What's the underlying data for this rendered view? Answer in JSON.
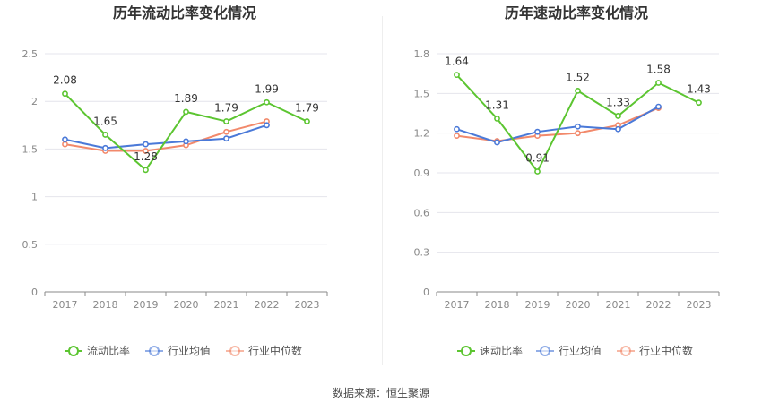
{
  "source_text": "数据来源：恒生聚源",
  "colors": {
    "main": "#5cc531",
    "avg": "#4a79d8",
    "median": "#f2896b",
    "grid": "#e4e4ec",
    "axis": "#8a8a8a",
    "tick_text": "#888888",
    "label_text": "#333333",
    "title_text": "#333333"
  },
  "chart_data": [
    {
      "type": "line",
      "title": "历年流动比率变化情况",
      "xlabel": "",
      "ylabel": "",
      "x": [
        "2017",
        "2018",
        "2019",
        "2020",
        "2021",
        "2022",
        "2023"
      ],
      "ylim": [
        0,
        2.5
      ],
      "yticks": [
        0,
        0.5,
        1,
        1.5,
        2,
        2.5
      ],
      "ytick_labels": [
        "0",
        "0.5",
        "1",
        "1.5",
        "2",
        "2.5"
      ],
      "grid": true,
      "legend_position": "bottom",
      "series": [
        {
          "name": "流动比率",
          "key": "main",
          "values": [
            2.08,
            1.65,
            1.28,
            1.89,
            1.79,
            1.99,
            1.79
          ],
          "labels": [
            "2.08",
            "1.65",
            "1.28",
            "1.89",
            "1.79",
            "1.99",
            "1.79"
          ]
        },
        {
          "name": "行业均值",
          "key": "avg",
          "values": [
            1.6,
            1.51,
            1.55,
            1.58,
            1.61,
            1.75,
            null
          ]
        },
        {
          "name": "行业中位数",
          "key": "median",
          "values": [
            1.55,
            1.48,
            1.48,
            1.54,
            1.68,
            1.79,
            null
          ]
        }
      ]
    },
    {
      "type": "line",
      "title": "历年速动比率变化情况",
      "xlabel": "",
      "ylabel": "",
      "x": [
        "2017",
        "2018",
        "2019",
        "2020",
        "2021",
        "2022",
        "2023"
      ],
      "ylim": [
        0,
        1.8
      ],
      "yticks": [
        0,
        0.3,
        0.6,
        0.9,
        1.2,
        1.5,
        1.8
      ],
      "ytick_labels": [
        "0",
        "0.3",
        "0.6",
        "0.9",
        "1.2",
        "1.5",
        "1.8"
      ],
      "grid": true,
      "legend_position": "bottom",
      "series": [
        {
          "name": "速动比率",
          "key": "main",
          "values": [
            1.64,
            1.31,
            0.91,
            1.52,
            1.33,
            1.58,
            1.43
          ],
          "labels": [
            "1.64",
            "1.31",
            "0.91",
            "1.52",
            "1.33",
            "1.58",
            "1.43"
          ]
        },
        {
          "name": "行业均值",
          "key": "avg",
          "values": [
            1.23,
            1.13,
            1.21,
            1.25,
            1.23,
            1.4,
            null
          ]
        },
        {
          "name": "行业中位数",
          "key": "median",
          "values": [
            1.18,
            1.14,
            1.18,
            1.2,
            1.26,
            1.39,
            null
          ]
        }
      ]
    }
  ]
}
